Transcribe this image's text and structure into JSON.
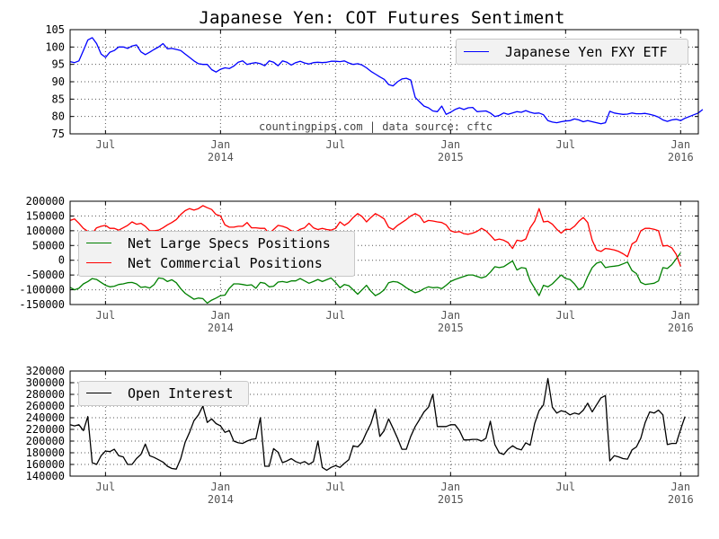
{
  "title": "Japanese Yen: COT Futures Sentiment",
  "watermark": "countingpips.com | data source: cftc",
  "colors": {
    "fxy": "#0000ff",
    "specs": "#008000",
    "commercial": "#ff0000",
    "open_interest": "#000000",
    "grid": "#555555"
  },
  "x_ticks": [
    {
      "week": 8,
      "label": [
        "Jul"
      ]
    },
    {
      "week": 34,
      "label": [
        "Jan",
        "2014"
      ]
    },
    {
      "week": 60,
      "label": [
        "Jul"
      ]
    },
    {
      "week": 86,
      "label": [
        "Jan",
        "2015"
      ]
    },
    {
      "week": 112,
      "label": [
        "Jul"
      ]
    },
    {
      "week": 138,
      "label": [
        "Jan",
        "2016"
      ]
    }
  ],
  "chart_data": [
    {
      "type": "line",
      "title": "Japanese Yen: COT Futures Sentiment",
      "x_units": "weeks (approx. Jun 2013 – Jan 2016)",
      "ylim": [
        75,
        105
      ],
      "yticks": [
        75,
        80,
        85,
        90,
        95,
        100,
        105
      ],
      "grid": true,
      "legend_placement": "top-right",
      "series": [
        {
          "name": "Japanese Yen FXY ETF",
          "color": "#0000ff",
          "values": [
            95.8,
            95.5,
            96,
            99,
            102,
            102.7,
            101,
            98,
            97,
            98.5,
            99,
            100,
            100,
            99.6,
            100.3,
            100.6,
            98.6,
            97.8,
            98.5,
            99.3,
            100,
            101,
            99.5,
            99.6,
            99.3,
            99,
            98,
            97,
            96,
            95.2,
            95,
            95,
            93.5,
            92.8,
            93.6,
            94,
            93.8,
            94.5,
            95.6,
            96,
            95,
            95.3,
            95.5,
            95.2,
            94.6,
            96,
            95.6,
            94.6,
            96,
            95.6,
            94.8,
            95.5,
            95.9,
            95.4,
            95.1,
            95.5,
            95.6,
            95.5,
            95.6,
            95.9,
            95.9,
            95.8,
            96,
            95.4,
            95,
            95.2,
            94.8,
            94,
            93,
            92.2,
            91.4,
            90.7,
            89.2,
            88.8,
            90,
            90.8,
            91,
            90.5,
            85.5,
            84.2,
            83,
            82.5,
            81.6,
            81.4,
            83,
            80.6,
            81.2,
            82,
            82.5,
            82,
            82.5,
            82.6,
            81.4,
            81.5,
            81.6,
            81,
            80,
            80.3,
            81,
            80.6,
            81,
            81.4,
            81.2,
            81.7,
            81.2,
            80.9,
            81,
            80.5,
            78.8,
            78.4,
            78.2,
            78.5,
            78.7,
            78.8,
            79.3,
            79,
            78.5,
            78.8,
            78.5,
            78.2,
            77.9,
            78.2,
            81.5,
            81,
            80.8,
            80.6,
            80.7,
            81,
            80.8,
            80.8,
            80.9,
            80.6,
            80.3,
            79.8,
            79,
            78.6,
            79,
            79.2,
            78.8,
            79.5,
            80,
            80.5,
            81,
            82
          ]
        }
      ]
    },
    {
      "type": "line",
      "ylim": [
        -150000,
        200000
      ],
      "yticks": [
        -150000,
        -100000,
        -50000,
        0,
        50000,
        100000,
        150000,
        200000
      ],
      "grid": true,
      "legend_placement": "left",
      "series": [
        {
          "name": "Net Large Specs Positions",
          "color": "#008000",
          "values": [
            -92000,
            -100000,
            -95000,
            -80000,
            -72000,
            -62000,
            -65000,
            -75000,
            -85000,
            -90000,
            -88000,
            -82000,
            -80000,
            -76000,
            -75000,
            -80000,
            -92000,
            -90000,
            -94000,
            -82000,
            -60000,
            -62000,
            -72000,
            -66000,
            -76000,
            -96000,
            -112000,
            -122000,
            -132000,
            -128000,
            -130000,
            -145000,
            -135000,
            -128000,
            -120000,
            -118000,
            -95000,
            -80000,
            -80000,
            -82000,
            -85000,
            -83000,
            -95000,
            -75000,
            -78000,
            -90000,
            -88000,
            -74000,
            -72000,
            -75000,
            -70000,
            -70000,
            -62000,
            -70000,
            -78000,
            -72000,
            -65000,
            -72000,
            -66000,
            -60000,
            -75000,
            -93000,
            -82000,
            -86000,
            -100000,
            -115000,
            -100000,
            -85000,
            -105000,
            -120000,
            -112000,
            -100000,
            -76000,
            -72000,
            -74000,
            -82000,
            -93000,
            -102000,
            -110000,
            -105000,
            -96000,
            -90000,
            -93000,
            -92000,
            -96000,
            -85000,
            -72000,
            -65000,
            -60000,
            -55000,
            -50000,
            -50000,
            -55000,
            -60000,
            -55000,
            -40000,
            -22000,
            -25000,
            -22000,
            -12000,
            -2000,
            -33000,
            -25000,
            -27000,
            -70000,
            -95000,
            -120000,
            -85000,
            -90000,
            -80000,
            -65000,
            -50000,
            -62000,
            -65000,
            -80000,
            -100000,
            -90000,
            -55000,
            -25000,
            -10000,
            -5000,
            -25000,
            -22000,
            -20000,
            -18000,
            -12000,
            -6000,
            -35000,
            -45000,
            -75000,
            -82000,
            -80000,
            -78000,
            -70000,
            -25000,
            -28000,
            -15000,
            5000,
            25000
          ]
        },
        {
          "name": "Net Commercial Positions",
          "color": "#ff0000",
          "values": [
            135000,
            140000,
            125000,
            108000,
            98000,
            92000,
            110000,
            115000,
            118000,
            108000,
            108000,
            102000,
            110000,
            118000,
            130000,
            122000,
            125000,
            115000,
            100000,
            100000,
            102000,
            110000,
            120000,
            128000,
            138000,
            155000,
            168000,
            175000,
            170000,
            175000,
            185000,
            178000,
            172000,
            155000,
            150000,
            120000,
            112000,
            112000,
            115000,
            115000,
            128000,
            110000,
            110000,
            108000,
            108000,
            90000,
            104000,
            118000,
            115000,
            110000,
            100000,
            95000,
            105000,
            110000,
            125000,
            110000,
            104000,
            108000,
            104000,
            102000,
            108000,
            130000,
            118000,
            128000,
            145000,
            158000,
            148000,
            130000,
            145000,
            158000,
            150000,
            140000,
            112000,
            104000,
            118000,
            128000,
            138000,
            150000,
            158000,
            150000,
            128000,
            135000,
            133000,
            130000,
            128000,
            120000,
            100000,
            95000,
            97000,
            90000,
            88000,
            92000,
            98000,
            108000,
            100000,
            85000,
            68000,
            72000,
            68000,
            60000,
            40000,
            68000,
            65000,
            72000,
            110000,
            132000,
            175000,
            130000,
            132000,
            122000,
            105000,
            92000,
            105000,
            104000,
            115000,
            132000,
            145000,
            128000,
            68000,
            35000,
            30000,
            40000,
            38000,
            35000,
            30000,
            22000,
            12000,
            55000,
            65000,
            100000,
            108000,
            108000,
            105000,
            100000,
            48000,
            50000,
            42000,
            20000,
            -20000
          ]
        }
      ]
    },
    {
      "type": "line",
      "ylim": [
        140000,
        320000
      ],
      "yticks": [
        140000,
        160000,
        180000,
        200000,
        220000,
        240000,
        260000,
        280000,
        300000,
        320000
      ],
      "grid": true,
      "legend_placement": "top-left",
      "series": [
        {
          "name": "Open Interest",
          "color": "#000000",
          "values": [
            228000,
            226000,
            228000,
            218000,
            242000,
            163000,
            160000,
            175000,
            183000,
            182000,
            186000,
            175000,
            173000,
            160000,
            160000,
            170000,
            177000,
            195000,
            175000,
            172000,
            168000,
            164000,
            157000,
            153000,
            152000,
            170000,
            198000,
            215000,
            235000,
            245000,
            260000,
            232000,
            238000,
            230000,
            226000,
            215000,
            218000,
            200000,
            197000,
            196000,
            200000,
            203000,
            204000,
            240000,
            157000,
            157000,
            187000,
            181000,
            163000,
            166000,
            170000,
            165000,
            162000,
            165000,
            160000,
            165000,
            200000,
            155000,
            150000,
            155000,
            158000,
            155000,
            162000,
            168000,
            192000,
            190000,
            198000,
            215000,
            230000,
            255000,
            208000,
            218000,
            238000,
            222000,
            205000,
            186000,
            186000,
            208000,
            225000,
            237000,
            250000,
            258000,
            280000,
            225000,
            225000,
            225000,
            228000,
            228000,
            218000,
            202000,
            202000,
            203000,
            203000,
            200000,
            205000,
            234000,
            194000,
            180000,
            177000,
            186000,
            192000,
            187000,
            185000,
            197000,
            193000,
            230000,
            252000,
            262000,
            307000,
            258000,
            248000,
            252000,
            250000,
            245000,
            248000,
            246000,
            253000,
            265000,
            250000,
            262000,
            274000,
            278000,
            166000,
            175000,
            173000,
            170000,
            169000,
            185000,
            190000,
            205000,
            232000,
            250000,
            248000,
            253000,
            245000,
            194000,
            196000,
            196000,
            220000,
            242000
          ]
        }
      ]
    }
  ]
}
